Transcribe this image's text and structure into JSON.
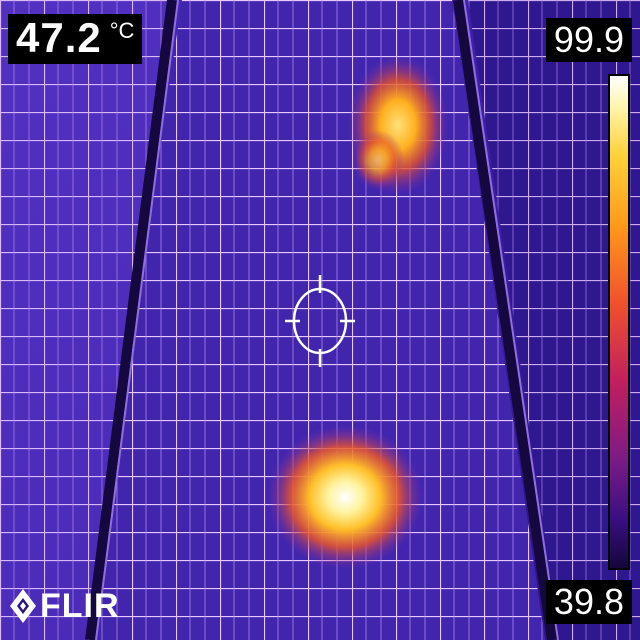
{
  "measurement": {
    "spot_value": "47.2",
    "unit": "°C"
  },
  "scale": {
    "max": "99.9",
    "min": "39.8"
  },
  "brand": {
    "logo_text": "FLIR"
  },
  "palette": [
    "#14063a",
    "#3a0f82",
    "#7b1b86",
    "#c21f5e",
    "#f0522c",
    "#ff9a1a",
    "#ffd23a",
    "#ffffff"
  ],
  "icons": [
    "crosshair-icon",
    "flir-logo-icon"
  ]
}
